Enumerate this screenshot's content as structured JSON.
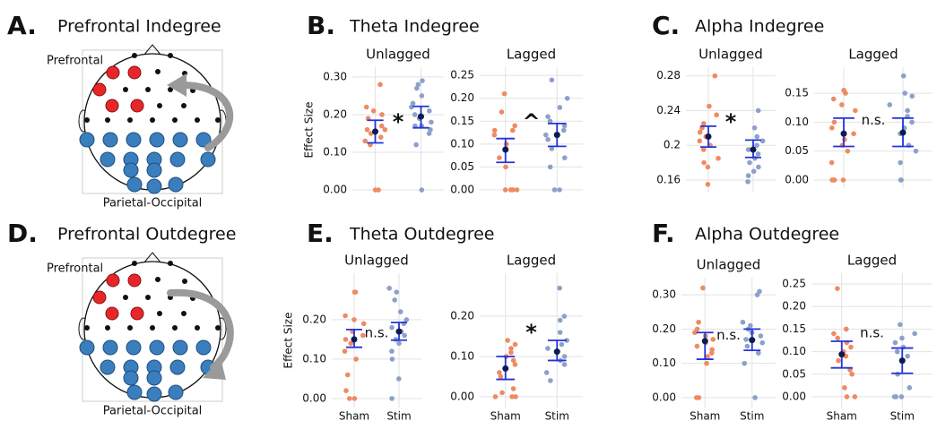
{
  "panels": [
    {
      "letter": "A.",
      "title": "Prefrontal Indegree"
    },
    {
      "letter": "B.",
      "title": "Theta Indegree"
    },
    {
      "letter": "C.",
      "title": "Alpha Indegree"
    },
    {
      "letter": "D.",
      "title": "Prefrontal Outdegree"
    },
    {
      "letter": "E.",
      "title": "Theta Outdegree"
    },
    {
      "letter": "F.",
      "title": "Alpha Outdegree"
    }
  ],
  "diagrams": [
    {
      "top_label": "Prefrontal",
      "bottom_label": "Parietal-Occipital"
    },
    {
      "top_label": "Prefrontal",
      "bottom_label": "Parietal-Occipital"
    }
  ],
  "chart_data": [
    {
      "type": "strip",
      "title": "Unlagged",
      "ylabel": "Effect Size",
      "categories": [
        null,
        null
      ],
      "ylim": [
        -0.007,
        0.326
      ],
      "yticks": [
        {
          "value": 0,
          "label": "0.00"
        },
        {
          "value": 0.1,
          "label": "0.10"
        },
        {
          "value": 0.2,
          "label": "0.20"
        },
        {
          "value": 0.3,
          "label": "0.30"
        }
      ],
      "annotation": "*",
      "mean_color": "#0d1b4f",
      "error_color": "#2233dd",
      "series": [
        {
          "color": "#ef8a62",
          "values": [
            0.28,
            0.22,
            0.21,
            0.2,
            0.19,
            0.17,
            0.16,
            0.16,
            0.15,
            0.14,
            0.13,
            0.12,
            0,
            0
          ],
          "mean": 0.155,
          "ci": [
            0.125,
            0.185
          ]
        },
        {
          "color": "#8da0cb",
          "values": [
            0.29,
            0.28,
            0.27,
            0.25,
            0.23,
            0.22,
            0.21,
            0.2,
            0.19,
            0.18,
            0.17,
            0.17,
            0.16,
            0.15,
            0.12,
            0
          ],
          "mean": 0.195,
          "ci": [
            0.165,
            0.222
          ]
        }
      ]
    },
    {
      "type": "strip",
      "title": "Lagged",
      "categories": [
        null,
        null
      ],
      "ylim": [
        -0.006,
        0.268
      ],
      "yticks": [
        {
          "value": 0,
          "label": "0.00"
        },
        {
          "value": 0.05,
          "label": "0.05"
        },
        {
          "value": 0.1,
          "label": "0.10"
        },
        {
          "value": 0.15,
          "label": "0.15"
        },
        {
          "value": 0.2,
          "label": "0.20"
        },
        {
          "value": 0.25,
          "label": "0.25"
        }
      ],
      "annotation": "^",
      "mean_color": "#0d1b4f",
      "error_color": "#2233dd",
      "series": [
        {
          "color": "#ef8a62",
          "values": [
            0.21,
            0.17,
            0.14,
            0.13,
            0.13,
            0.12,
            0.1,
            0.07,
            0.05,
            0,
            0,
            0,
            0
          ],
          "mean": 0.088,
          "ci": [
            0.06,
            0.112
          ]
        },
        {
          "color": "#8da0cb",
          "values": [
            0.24,
            0.2,
            0.18,
            0.16,
            0.15,
            0.14,
            0.13,
            0.12,
            0.11,
            0.09,
            0.07,
            0.05,
            0,
            0
          ],
          "mean": 0.12,
          "ci": [
            0.095,
            0.145
          ]
        }
      ]
    },
    {
      "type": "strip",
      "title": "Unlagged",
      "categories": [
        null,
        null
      ],
      "ylim": [
        0.1455,
        0.29
      ],
      "yticks": [
        0.16,
        0.2,
        0.24,
        0.28
      ],
      "annotation": "*",
      "mean_color": "#0d1b4f",
      "error_color": "#2233dd",
      "series": [
        {
          "color": "#ef8a62",
          "values": [
            0.28,
            0.245,
            0.235,
            0.225,
            0.22,
            0.215,
            0.21,
            0.205,
            0.2,
            0.195,
            0.185,
            0.18,
            0.175,
            0.155
          ],
          "mean": 0.21,
          "ci": [
            0.198,
            0.222
          ]
        },
        {
          "color": "#8da0cb",
          "values": [
            0.24,
            0.22,
            0.21,
            0.205,
            0.2,
            0.195,
            0.19,
            0.185,
            0.18,
            0.175,
            0.17,
            0.165,
            0.158
          ],
          "mean": 0.195,
          "ci": [
            0.186,
            0.206
          ]
        }
      ]
    },
    {
      "type": "strip",
      "title": "Lagged",
      "categories": [
        null,
        null
      ],
      "ylim": [
        -0.014,
        0.195
      ],
      "yticks": [
        {
          "value": 0,
          "label": "0.00"
        },
        {
          "value": 0.05,
          "label": "0.05"
        },
        {
          "value": 0.1,
          "label": "0.10"
        },
        {
          "value": 0.15,
          "label": "0.15"
        }
      ],
      "annotation": "n.s.",
      "mean_color": "#0d1b4f",
      "error_color": "#2233dd",
      "series": [
        {
          "color": "#ef8a62",
          "values": [
            0.155,
            0.15,
            0.14,
            0.13,
            0.12,
            0.1,
            0.09,
            0.08,
            0.07,
            0.06,
            0.05,
            0.03,
            0,
            0,
            0,
            0
          ],
          "mean": 0.08,
          "ci": [
            0.058,
            0.107
          ]
        },
        {
          "color": "#8da0cb",
          "values": [
            0.18,
            0.15,
            0.145,
            0.13,
            0.12,
            0.11,
            0.1,
            0.09,
            0.08,
            0.06,
            0.05,
            0.03,
            0,
            0
          ],
          "mean": 0.082,
          "ci": [
            0.058,
            0.107
          ]
        }
      ]
    },
    {
      "type": "strip",
      "title": "Unlagged",
      "ylabel": "Effect Size",
      "categories": [
        "Sham",
        "Stim"
      ],
      "ylim": [
        -0.023,
        0.318
      ],
      "yticks": [
        {
          "value": 0,
          "label": "0.00"
        },
        {
          "value": 0.1,
          "label": "0.10"
        },
        {
          "value": 0.2,
          "label": "0.20"
        }
      ],
      "annotation": "n.s.",
      "mean_color": "#0d1b4f",
      "error_color": "#2233dd",
      "series": [
        {
          "color": "#ef8a62",
          "values": [
            0.27,
            0.27,
            0.21,
            0.2,
            0.19,
            0.17,
            0.16,
            0.15,
            0.14,
            0.12,
            0.1,
            0.06,
            0.02,
            0,
            0
          ],
          "mean": 0.15,
          "ci": [
            0.13,
            0.175
          ]
        },
        {
          "color": "#8da0cb",
          "values": [
            0.28,
            0.27,
            0.25,
            0.22,
            0.2,
            0.19,
            0.18,
            0.17,
            0.16,
            0.15,
            0.14,
            0.12,
            0.1,
            0.05,
            0
          ],
          "mean": 0.17,
          "ci": [
            0.148,
            0.193
          ]
        }
      ]
    },
    {
      "type": "strip",
      "title": "Lagged",
      "categories": [
        "Sham",
        "Stim"
      ],
      "ylim": [
        -0.027,
        0.307
      ],
      "yticks": [
        {
          "value": 0,
          "label": "0.00"
        },
        {
          "value": 0.1,
          "label": "0.10"
        },
        {
          "value": 0.2,
          "label": "0.20"
        }
      ],
      "annotation": "*",
      "mean_color": "#0d1b4f",
      "error_color": "#2233dd",
      "series": [
        {
          "color": "#ef8a62",
          "values": [
            0.14,
            0.13,
            0.12,
            0.11,
            0.1,
            0.09,
            0.08,
            0.06,
            0.05,
            0.02,
            0.01,
            0,
            0,
            0
          ],
          "mean": 0.07,
          "ci": [
            0.043,
            0.1
          ]
        },
        {
          "color": "#8da0cb",
          "values": [
            0.27,
            0.2,
            0.19,
            0.16,
            0.14,
            0.13,
            0.12,
            0.11,
            0.1,
            0.09,
            0.08,
            0.06,
            0.04
          ],
          "mean": 0.112,
          "ci": [
            0.09,
            0.14
          ]
        }
      ]
    },
    {
      "type": "strip",
      "title": "Unlagged",
      "categories": [
        "Sham",
        "Stim"
      ],
      "ylim": [
        -0.029,
        0.35
      ],
      "yticks": [
        {
          "value": 0,
          "label": "0.00"
        },
        {
          "value": 0.1,
          "label": "0.10"
        },
        {
          "value": 0.2,
          "label": "0.20"
        },
        {
          "value": 0.3,
          "label": "0.30"
        }
      ],
      "annotation": "n.s.",
      "mean_color": "#0d1b4f",
      "error_color": "#2233dd",
      "series": [
        {
          "color": "#ef8a62",
          "values": [
            0.32,
            0.22,
            0.2,
            0.19,
            0.18,
            0.17,
            0.16,
            0.15,
            0.14,
            0.13,
            0.12,
            0.1,
            0,
            0
          ],
          "mean": 0.165,
          "ci": [
            0.112,
            0.19
          ]
        },
        {
          "color": "#8da0cb",
          "values": [
            0.31,
            0.3,
            0.22,
            0.21,
            0.2,
            0.19,
            0.18,
            0.17,
            0.16,
            0.15,
            0.13,
            0.1,
            0
          ],
          "mean": 0.168,
          "ci": [
            0.138,
            0.2
          ]
        }
      ]
    },
    {
      "type": "strip",
      "title": "Lagged",
      "categories": [
        "Sham",
        "Stim"
      ],
      "ylim": [
        -0.024,
        0.274
      ],
      "yticks": [
        {
          "value": 0,
          "label": "0.00"
        },
        {
          "value": 0.05,
          "label": "0.05"
        },
        {
          "value": 0.1,
          "label": "0.10"
        },
        {
          "value": 0.15,
          "label": "0.15"
        },
        {
          "value": 0.2,
          "label": "0.20"
        },
        {
          "value": 0.25,
          "label": "0.25"
        }
      ],
      "annotation": "n.s.",
      "mean_color": "#0d1b4f",
      "error_color": "#2233dd",
      "series": [
        {
          "color": "#ef8a62",
          "values": [
            0.24,
            0.15,
            0.14,
            0.13,
            0.12,
            0.11,
            0.1,
            0.09,
            0.08,
            0.06,
            0.05,
            0.02,
            0,
            0
          ],
          "mean": 0.094,
          "ci": [
            0.064,
            0.123
          ]
        },
        {
          "color": "#8da0cb",
          "values": [
            0.16,
            0.14,
            0.13,
            0.12,
            0.11,
            0.1,
            0.09,
            0.08,
            0.05,
            0.02,
            0,
            0,
            0
          ],
          "mean": 0.08,
          "ci": [
            0.052,
            0.108
          ]
        }
      ]
    }
  ]
}
